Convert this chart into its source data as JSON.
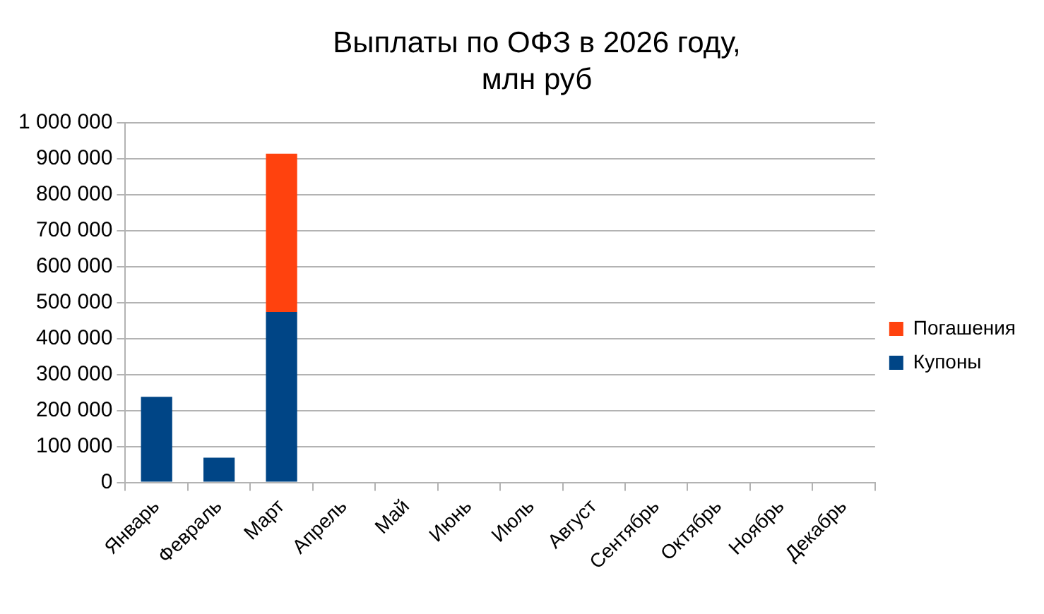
{
  "chart_data": {
    "type": "bar",
    "title": "Выплаты по ОФЗ в 2026 году, млн руб",
    "categories": [
      "Январь",
      "Февраль",
      "Март",
      "Апрель",
      "Май",
      "Июнь",
      "Июль",
      "Август",
      "Сентябрь",
      "Октябрь",
      "Ноябрь",
      "Декабрь"
    ],
    "series": [
      {
        "name": "Купоны",
        "color": "#004586",
        "values": [
          238000,
          69000,
          474000,
          null,
          null,
          null,
          null,
          null,
          null,
          null,
          null,
          null
        ]
      },
      {
        "name": "Погашения",
        "color": "#ff420e",
        "values": [
          null,
          null,
          440000,
          null,
          null,
          null,
          null,
          null,
          null,
          null,
          null,
          null
        ]
      }
    ],
    "stacked": true,
    "ylim": [
      0,
      1000000
    ],
    "yticks": [
      0,
      {
        "value": 100000,
        "label": "100 000"
      },
      {
        "value": 200000,
        "label": "200 000"
      },
      {
        "value": 300000,
        "label": "300 000"
      },
      {
        "value": 400000,
        "label": "400 000"
      },
      {
        "value": 500000,
        "label": "500 000"
      },
      {
        "value": 600000,
        "label": "600 000"
      },
      {
        "value": 700000,
        "label": "700 000"
      },
      {
        "value": 800000,
        "label": "800 000"
      },
      {
        "value": 900000,
        "label": "900 000"
      },
      {
        "value": 1000000,
        "label": "1 000 000"
      }
    ],
    "grid": "y",
    "legend": "right"
  }
}
